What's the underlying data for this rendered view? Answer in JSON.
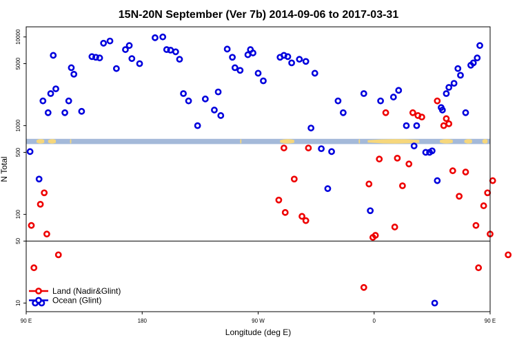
{
  "chart_data": {
    "type": "scatter",
    "title": "15N-20N September (Ver 7b)   2014-09-06 to 2017-03-31",
    "xlabel": "Longitude (deg E)",
    "ylabel": "N Total",
    "x_axis": {
      "range": [
        90,
        450
      ],
      "ticks": [
        90,
        180,
        270,
        360,
        450
      ],
      "tick_labels": [
        "90 E",
        "180",
        "90 W",
        "0",
        "90 E"
      ]
    },
    "y_axis": {
      "scale": "log",
      "range": [
        8,
        13000
      ],
      "ticks": [
        10,
        50,
        100,
        500,
        1000,
        5000,
        10000
      ],
      "tick_labels": [
        "10",
        "50",
        "100",
        "500",
        "1000",
        "5000",
        "10000"
      ]
    },
    "reference_lines": [
      50
    ],
    "map_band": {
      "y_range": [
        620,
        710
      ],
      "ocean_color": "#a4b9d9",
      "land_color": "#f6d77c"
    },
    "legend": {
      "position": "bottom-left",
      "entries": [
        "Land (Nadir&Glint)",
        "Ocean (Glint)"
      ]
    },
    "series": [
      {
        "name": "Land (Nadir&Glint)",
        "color": "#ee0000",
        "x": [
          94,
          96,
          101,
          104,
          106,
          115,
          286,
          290,
          298,
          291,
          304,
          307,
          309,
          352,
          356,
          359,
          361,
          364,
          369,
          376,
          378,
          382,
          387,
          390,
          394,
          397,
          409,
          414,
          418,
          416,
          421,
          426,
          431,
          439,
          441,
          445,
          448,
          450,
          452,
          464
        ],
        "y": [
          75,
          25,
          130,
          175,
          60,
          35,
          145,
          560,
          250,
          105,
          95,
          85,
          560,
          15,
          220,
          55,
          58,
          420,
          1400,
          72,
          430,
          210,
          370,
          1400,
          1300,
          1250,
          1900,
          1000,
          1050,
          1200,
          310,
          160,
          300,
          75,
          25,
          125,
          175,
          60,
          240,
          35
        ]
      },
      {
        "name": "Ocean (Glint)",
        "color": "#0000dd",
        "x": [
          93,
          97,
          100,
          102,
          103,
          107,
          109,
          111,
          113,
          120,
          123,
          125,
          127,
          133,
          141,
          144,
          147,
          150,
          155,
          160,
          167,
          170,
          172,
          178,
          190,
          196,
          199,
          202,
          206,
          209,
          212,
          216,
          223,
          229,
          236,
          239,
          241,
          246,
          250,
          252,
          256,
          262,
          264,
          266,
          270,
          274,
          287,
          290,
          293,
          296,
          302,
          307,
          311,
          314,
          319,
          324,
          327,
          332,
          336,
          352,
          357,
          365,
          375,
          379,
          385,
          391,
          393,
          400,
          403,
          405,
          407,
          409,
          412,
          413,
          416,
          418,
          422,
          425,
          427,
          431,
          435,
          437,
          440,
          442
        ],
        "y": [
          510,
          10,
          250,
          10,
          1900,
          1400,
          2300,
          6200,
          2600,
          1400,
          1900,
          4500,
          3800,
          1450,
          6000,
          5900,
          5800,
          8500,
          9000,
          4400,
          7200,
          8000,
          5700,
          5000,
          9800,
          10000,
          7200,
          7100,
          6800,
          5600,
          2300,
          1900,
          1000,
          2000,
          1500,
          2400,
          1300,
          7300,
          5900,
          4500,
          4200,
          6300,
          7200,
          6600,
          3900,
          3200,
          5900,
          6200,
          6000,
          5100,
          5600,
          5300,
          940,
          3900,
          550,
          195,
          510,
          1900,
          1400,
          2300,
          110,
          1900,
          2100,
          2500,
          1000,
          590,
          1000,
          500,
          500,
          520,
          10,
          240,
          1600,
          1500,
          2300,
          2700,
          3000,
          4400,
          3700,
          1400,
          4800,
          5100,
          5800,
          8000
        ]
      }
    ]
  }
}
